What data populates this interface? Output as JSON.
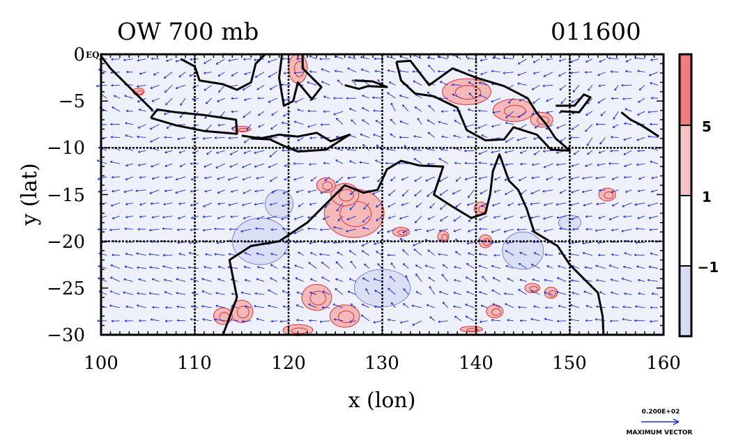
{
  "title_left": "OW 700 mb",
  "title_right": "011600",
  "eq_label": "EQ",
  "x_axis": {
    "label": "x (lon)",
    "ticks": [
      "100",
      "110",
      "120",
      "130",
      "140",
      "150",
      "160"
    ]
  },
  "y_axis": {
    "label": "y (lat)",
    "ticks": [
      "0",
      "−5",
      "−10",
      "−15",
      "−20",
      "−25",
      "−30"
    ]
  },
  "colorbar": {
    "labels": [
      "5",
      "1",
      "−1"
    ],
    "colors": {
      "high": "#f47b7b",
      "mid": "#f7c2c2",
      "zero": "#ffffff",
      "neg": "#d7dcf4"
    }
  },
  "vector_key": {
    "magnitude": "0.200E+02",
    "caption": "MAXIMUM VECTOR"
  },
  "colors": {
    "vectors": "#1a2bd6",
    "positive_contour": "#e03030",
    "coast": "#000000"
  }
}
